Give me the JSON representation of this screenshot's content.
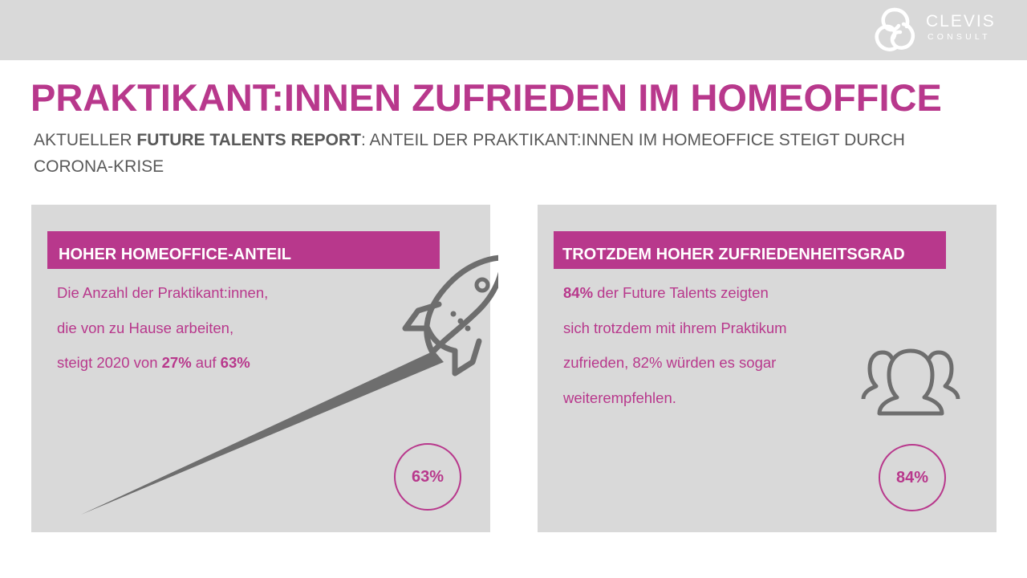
{
  "header": {
    "logo_line1": "CLEVIS",
    "logo_line2": "CONSULT"
  },
  "title": "PRAKTIKANT:INNEN ZUFRIEDEN IM HOMEOFFICE",
  "subtitle": {
    "prefix": "AKTUELLER ",
    "bold": "FUTURE TALENTS REPORT",
    "suffix": ": ANTEIL DER PRAKTIKANT:INNEN IM HOMEOFFICE STEIGT DURCH CORONA-KRISE"
  },
  "left_card": {
    "heading": "HOHER HOMEOFFICE-ANTEIL",
    "line1": "Die Anzahl der Praktikant:innen,",
    "line2": "die von zu Hause arbeiten,",
    "line3_prefix": "steigt 2020 von ",
    "line3_value1": "27%",
    "line3_mid": " auf ",
    "line3_value2": "63%",
    "circle_value": "63%",
    "icon": "rocket-icon"
  },
  "right_card": {
    "heading": "TROTZDEM HOHER ZUFRIEDENHEITSGRAD",
    "line1_value": "84%",
    "line1_suffix": " der Future Talents zeigten",
    "line2": "sich trotzdem mit ihrem Praktikum",
    "line3": "zufrieden, 82% würden es sogar",
    "line4": "weiterempfehlen.",
    "circle_value": "84%",
    "icon": "people-icon"
  },
  "colors": {
    "accent": "#b8388c",
    "panel": "#d9d9d9",
    "text": "#595959",
    "icon": "#707070"
  }
}
